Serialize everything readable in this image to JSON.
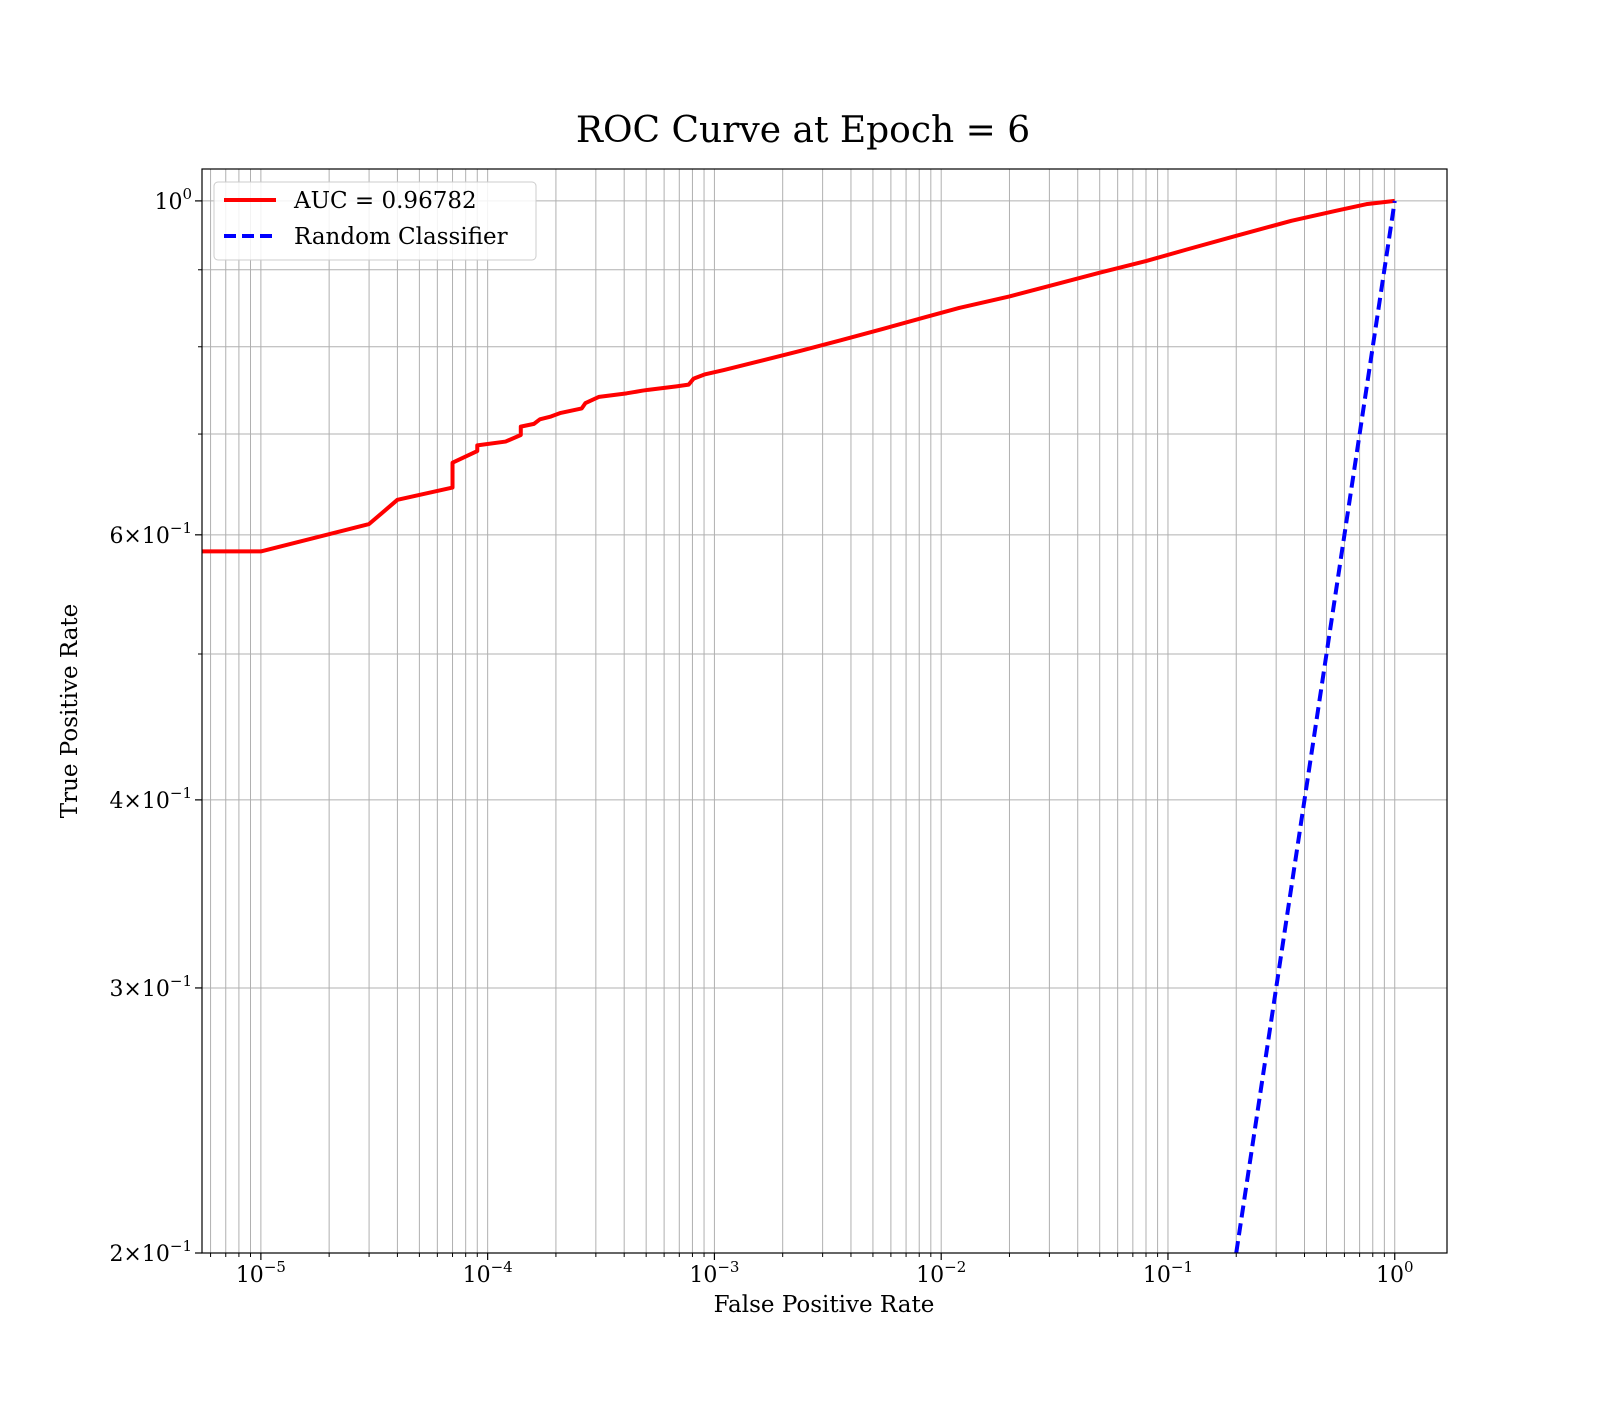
{
  "chart_data": {
    "type": "line",
    "title": "ROC Curve at Epoch = 6",
    "xlabel": "False Positive Rate",
    "ylabel": "True Positive Rate",
    "xscale": "log",
    "yscale": "log",
    "xlim": [
      5.5e-06,
      1.7
    ],
    "ylim": [
      0.2,
      1.05
    ],
    "grid": true,
    "grid_which": "both",
    "legend_position": "upper-left",
    "x_ticks": [
      {
        "value": 1e-05,
        "base": "10",
        "exp": "−5"
      },
      {
        "value": 0.0001,
        "base": "10",
        "exp": "−4"
      },
      {
        "value": 0.001,
        "base": "10",
        "exp": "−3"
      },
      {
        "value": 0.01,
        "base": "10",
        "exp": "−2"
      },
      {
        "value": 0.1,
        "base": "10",
        "exp": "−1"
      },
      {
        "value": 1,
        "base": "10",
        "exp": "0"
      }
    ],
    "y_ticks": [
      {
        "value": 1.0,
        "base": "10",
        "exp": "0"
      },
      {
        "value": 0.6,
        "base": "6×10",
        "exp": "−1"
      },
      {
        "value": 0.4,
        "base": "4×10",
        "exp": "−1"
      },
      {
        "value": 0.3,
        "base": "3×10",
        "exp": "−1"
      },
      {
        "value": 0.2,
        "base": "2×10",
        "exp": "−1"
      }
    ],
    "y_minor_grid": [
      0.5,
      0.7,
      0.8,
      0.9
    ],
    "series": [
      {
        "name": "AUC = 0.96782",
        "color": "#ff0000",
        "style": "solid",
        "points": [
          [
            5.5e-06,
            0.585
          ],
          [
            1e-05,
            0.585
          ],
          [
            3e-05,
            0.61
          ],
          [
            4e-05,
            0.633
          ],
          [
            7e-05,
            0.645
          ],
          [
            7e-05,
            0.67
          ],
          [
            9e-05,
            0.682
          ],
          [
            9e-05,
            0.688
          ],
          [
            0.00012,
            0.692
          ],
          [
            0.00014,
            0.699
          ],
          [
            0.00014,
            0.708
          ],
          [
            0.00016,
            0.711
          ],
          [
            0.00017,
            0.716
          ],
          [
            0.00019,
            0.719
          ],
          [
            0.00021,
            0.723
          ],
          [
            0.00026,
            0.728
          ],
          [
            0.00027,
            0.734
          ],
          [
            0.00031,
            0.741
          ],
          [
            0.00041,
            0.745
          ],
          [
            0.00048,
            0.748
          ],
          [
            0.00051,
            0.749
          ],
          [
            0.00068,
            0.753
          ],
          [
            0.00077,
            0.755
          ],
          [
            0.00081,
            0.762
          ],
          [
            0.00091,
            0.767
          ],
          [
            0.0011,
            0.772
          ],
          [
            0.0015,
            0.781
          ],
          [
            0.0024,
            0.795
          ],
          [
            0.0036,
            0.808
          ],
          [
            0.0055,
            0.822
          ],
          [
            0.0085,
            0.837
          ],
          [
            0.012,
            0.849
          ],
          [
            0.02,
            0.864
          ],
          [
            0.03,
            0.878
          ],
          [
            0.05,
            0.896
          ],
          [
            0.08,
            0.912
          ],
          [
            0.12,
            0.928
          ],
          [
            0.2,
            0.948
          ],
          [
            0.35,
            0.97
          ],
          [
            0.55,
            0.985
          ],
          [
            0.75,
            0.995
          ],
          [
            1.0,
            1.0
          ]
        ]
      },
      {
        "name": "Random Classifier",
        "color": "#0000ff",
        "style": "dashed",
        "points": [
          [
            0.2,
            0.2
          ],
          [
            1.0,
            1.0
          ]
        ]
      }
    ]
  }
}
